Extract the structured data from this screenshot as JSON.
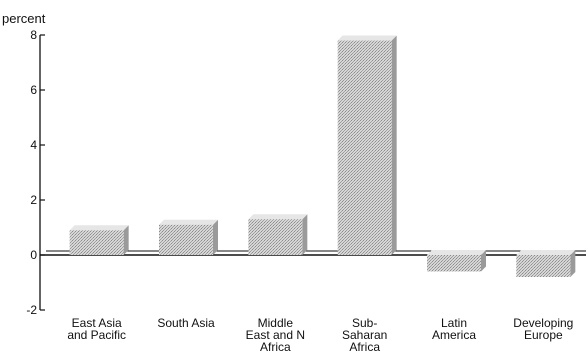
{
  "chart_data": {
    "type": "bar",
    "ylabel": "percent",
    "categories": [
      [
        "East Asia",
        "and Pacific"
      ],
      [
        "South Asia"
      ],
      [
        "Middle",
        "East and N",
        "Africa"
      ],
      [
        "Sub-",
        "Saharan",
        "Africa"
      ],
      [
        "Latin",
        "America"
      ],
      [
        "Developing",
        "Europe"
      ]
    ],
    "values": [
      0.9,
      1.1,
      1.3,
      7.8,
      -0.6,
      -0.8
    ],
    "ylim": [
      -2,
      8
    ],
    "yticks": [
      "-2",
      "0",
      "2",
      "4",
      "6",
      "8"
    ],
    "grid": false,
    "colors": {
      "bar_fill": "#cfcfcf",
      "bar_top": "#e6e6e6",
      "bar_side": "#9a9a9a",
      "axis": "#111111"
    }
  }
}
